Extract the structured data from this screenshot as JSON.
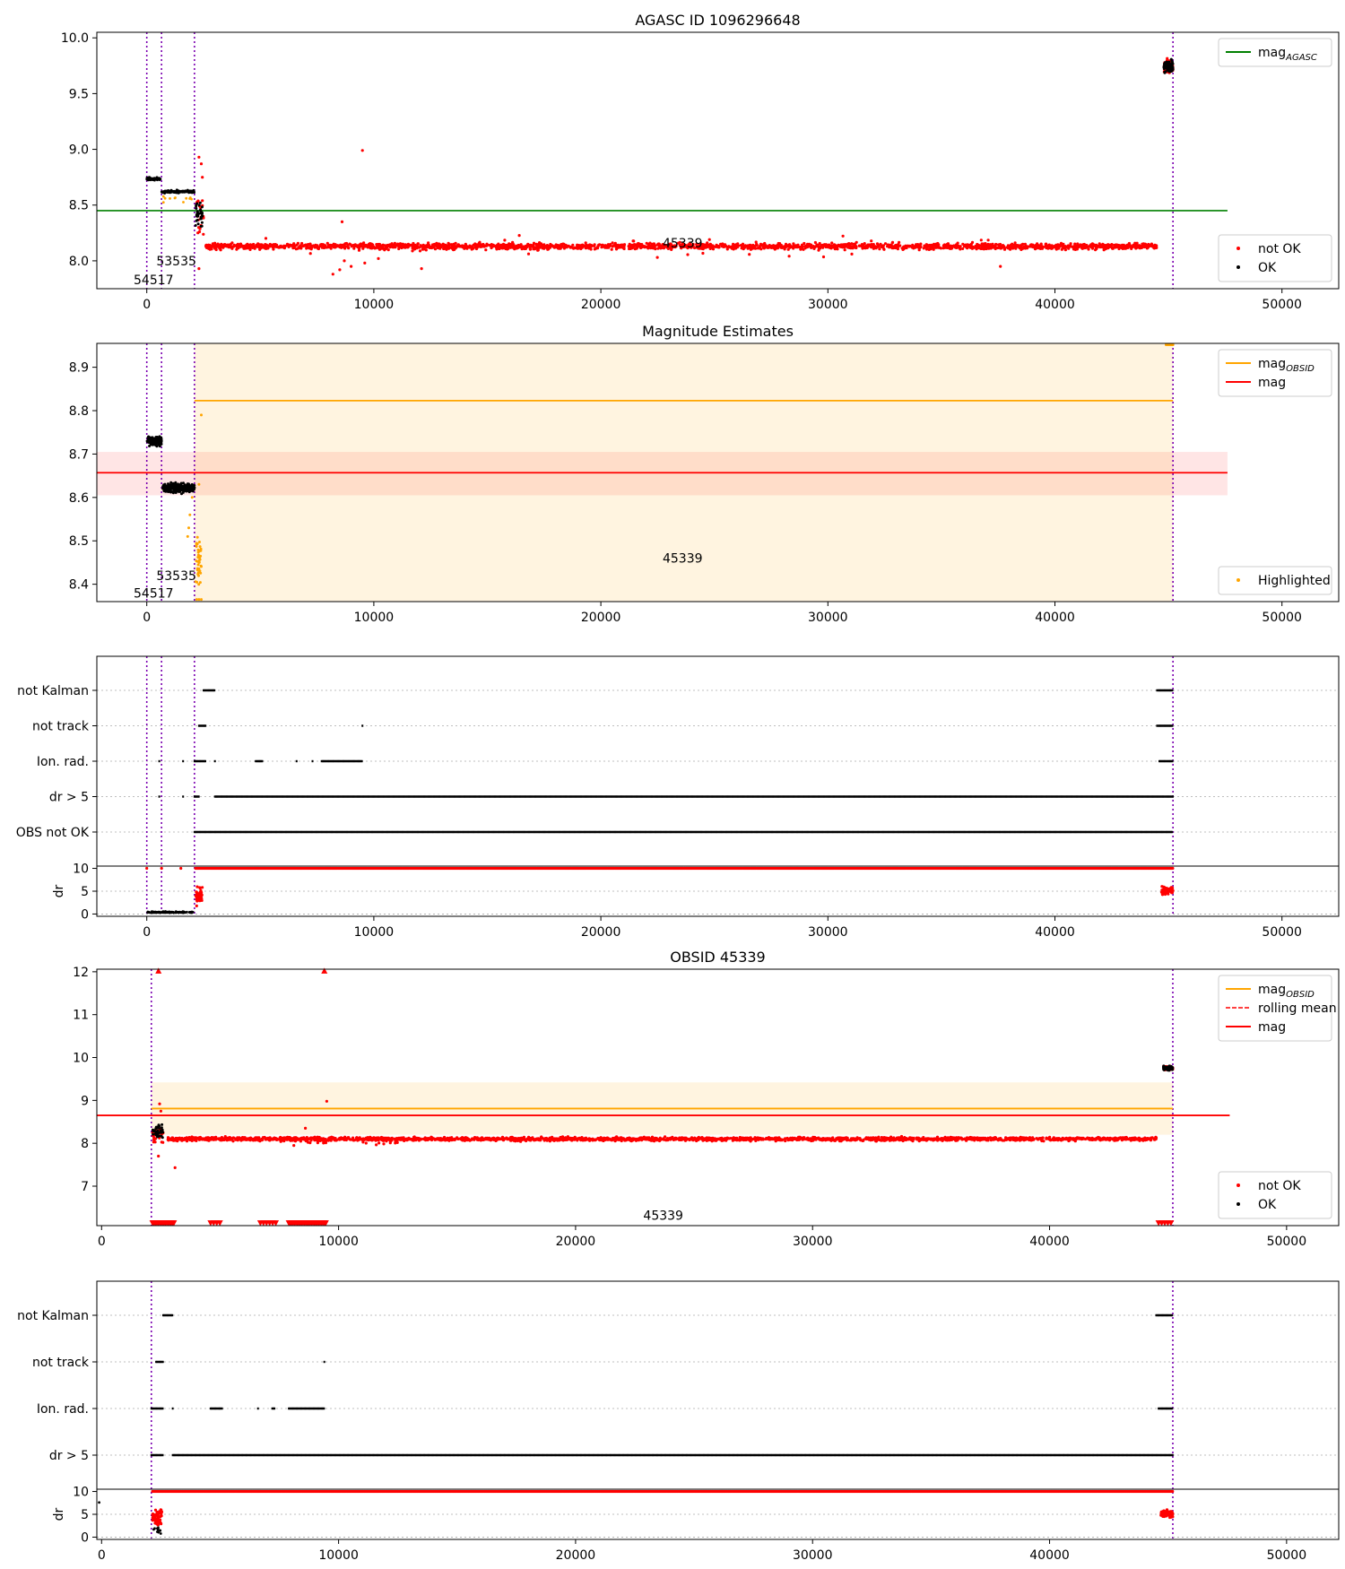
{
  "chart_data": [
    {
      "panel": "agasc",
      "type": "scatter",
      "title": "AGASC ID 1096296648",
      "xlim": [
        -2200,
        52500
      ],
      "ylim": [
        7.75,
        10.05
      ],
      "xticks": [
        0,
        10000,
        20000,
        30000,
        40000,
        50000
      ],
      "yticks": [
        8.0,
        8.5,
        9.0,
        9.5,
        10.0
      ],
      "vlines": [
        0,
        650,
        2100,
        45200
      ],
      "obs_labels": [
        {
          "text": "54517",
          "x": 300,
          "y": 7.83
        },
        {
          "text": "53535",
          "x": 1300,
          "y": 8.0
        },
        {
          "text": "45339",
          "x": 23600,
          "y": 8.16
        }
      ],
      "hlines": [
        {
          "name": "mag_AGASC",
          "y": 8.45,
          "x0": -2200,
          "x1": 47600,
          "color": "#008000"
        }
      ],
      "legend_top": {
        "placement": "top-right",
        "entries": [
          {
            "base": "mag",
            "sub": "AGASC",
            "color": "#008000",
            "kind": "line"
          }
        ]
      },
      "legend_bottom": {
        "placement": "bottom-right",
        "entries": [
          {
            "label": "not OK",
            "color": "#ff0000",
            "kind": "dot"
          },
          {
            "label": "OK",
            "color": "#000000",
            "kind": "dot"
          }
        ]
      }
    },
    {
      "panel": "mag_estimates",
      "type": "scatter",
      "title": "Magnitude Estimates",
      "xlim": [
        -2200,
        52500
      ],
      "ylim": [
        8.36,
        8.955
      ],
      "xticks": [
        0,
        10000,
        20000,
        30000,
        40000,
        50000
      ],
      "yticks": [
        8.4,
        8.5,
        8.6,
        8.7,
        8.8,
        8.9
      ],
      "vlines": [
        0,
        650,
        2100,
        45200
      ],
      "obs_labels": [
        {
          "text": "54517",
          "x": 300,
          "y": 8.38
        },
        {
          "text": "53535",
          "x": 1300,
          "y": 8.42
        },
        {
          "text": "45339",
          "x": 23600,
          "y": 8.46
        }
      ],
      "bands": [
        {
          "x0": -2200,
          "x1": 47600,
          "y0": 8.605,
          "y1": 8.705,
          "color": "#ff0000",
          "opacity": 0.1
        },
        {
          "x0": 2100,
          "x1": 45200,
          "y0": 8.36,
          "y1": 8.955,
          "color": "#ffa500",
          "opacity": 0.12
        }
      ],
      "segments": [
        {
          "x0": 0,
          "x1": 650,
          "y": 8.73,
          "color": "#ffa500"
        },
        {
          "x0": 650,
          "x1": 2100,
          "y": 8.62,
          "color": "#ffa500"
        },
        {
          "x0": 2100,
          "x1": 45200,
          "y": 8.823,
          "color": "#ffa500"
        },
        {
          "x0": -2200,
          "x1": 47600,
          "y": 8.657,
          "color": "#ff0000"
        }
      ],
      "legend_top": {
        "placement": "top-right",
        "entries": [
          {
            "base": "mag",
            "sub": "OBSID",
            "color": "#ffa500",
            "kind": "line"
          },
          {
            "label": "mag",
            "color": "#ff0000",
            "kind": "line"
          }
        ]
      },
      "legend_bottom": {
        "placement": "bottom-right",
        "entries": [
          {
            "label": "Highlighted",
            "color": "#ffa500",
            "kind": "dot"
          }
        ]
      }
    },
    {
      "panel": "flags_all",
      "type": "scatter",
      "xlim": [
        -2200,
        52500
      ],
      "xticks": [
        0,
        10000,
        20000,
        30000,
        40000,
        50000
      ],
      "vlines": [
        0,
        650,
        2100,
        45200
      ],
      "categories": [
        "not Kalman",
        "not track",
        "Ion. rad.",
        "dr > 5",
        "OBS not OK"
      ],
      "dr_axis": {
        "label": "dr",
        "ylim": [
          -0.5,
          10.5
        ],
        "yticks": [
          0,
          5,
          10
        ]
      }
    },
    {
      "panel": "obsid",
      "type": "scatter",
      "title": "OBSID 45339",
      "xlim": [
        -200,
        52200
      ],
      "ylim": [
        6.08,
        12.06
      ],
      "xticks": [
        0,
        10000,
        20000,
        30000,
        40000,
        50000
      ],
      "yticks": [
        7,
        8,
        9,
        10,
        11,
        12
      ],
      "vlines": [
        2100,
        45200
      ],
      "obs_labels": [
        {
          "text": "45339",
          "x": 23700,
          "y": 6.32
        }
      ],
      "bands": [
        {
          "x0": 2100,
          "x1": 45200,
          "y0": 8.2,
          "y1": 9.42,
          "color": "#ffa500",
          "opacity": 0.12
        }
      ],
      "segments": [
        {
          "x0": 2100,
          "x1": 45200,
          "y": 8.81,
          "color": "#ffa500"
        },
        {
          "x0": -200,
          "x1": 47600,
          "y": 8.65,
          "color": "#ff0000"
        }
      ],
      "legend_top": {
        "placement": "top-right",
        "entries": [
          {
            "base": "mag",
            "sub": "OBSID",
            "color": "#ffa500",
            "kind": "line"
          },
          {
            "label": "rolling mean",
            "color": "#ff0000",
            "kind": "dash"
          },
          {
            "label": "mag",
            "color": "#ff0000",
            "kind": "line"
          }
        ]
      },
      "legend_bottom": {
        "placement": "bottom-right",
        "entries": [
          {
            "label": "not OK",
            "color": "#ff0000",
            "kind": "dot"
          },
          {
            "label": "OK",
            "color": "#000000",
            "kind": "dot"
          }
        ]
      }
    },
    {
      "panel": "flags_obsid",
      "type": "scatter",
      "xlim": [
        -200,
        52200
      ],
      "xticks": [
        0,
        10000,
        20000,
        30000,
        40000,
        50000
      ],
      "vlines": [
        2100,
        45200
      ],
      "categories": [
        "not Kalman",
        "not track",
        "Ion. rad.",
        "dr > 5"
      ],
      "dr_axis": {
        "label": "dr",
        "ylim": [
          -0.5,
          10.5
        ],
        "yticks": [
          0,
          5,
          10
        ]
      }
    }
  ]
}
